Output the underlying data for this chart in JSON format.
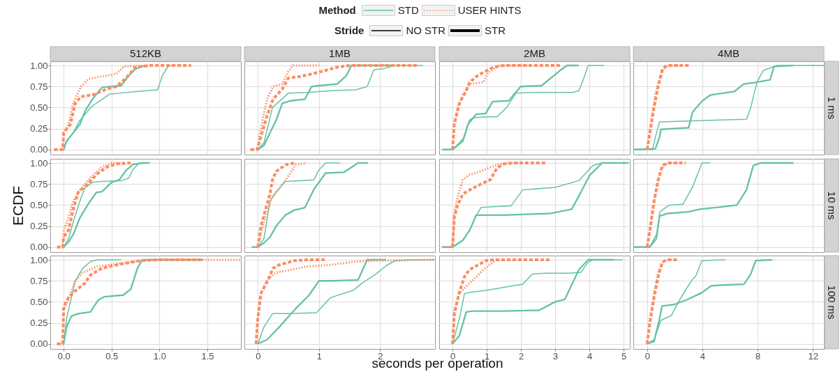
{
  "chart_data": [
    {
      "type": "other",
      "xlabel": "seconds per operation",
      "annotations": [
        "Method",
        "STD",
        "USER HINTS",
        "Stride",
        "NO STR",
        "STR"
      ]
    },
    {
      "type": "line",
      "title": "512KB",
      "tick_labels": "y",
      "grid": true,
      "xlim": [
        -0.14,
        1.85
      ],
      "xticks": [
        0,
        0.5,
        1,
        1.5
      ],
      "ylim": [
        -0.06,
        1.05
      ],
      "yticks": [
        {
          "value": 0,
          "label": "0.00"
        },
        0.25,
        {
          "value": 0.5,
          "label": "0.50"
        },
        0.75,
        {
          "value": 1,
          "label": "1.00"
        }
      ],
      "series": [
        {
          "color": "#66c2a5",
          "line_style": "solid",
          "x": [
            0,
            0.02,
            0.1,
            0.165,
            0.29,
            0.38,
            0.48,
            0.58,
            0.75,
            0.98,
            1.03,
            1.09,
            1.13
          ],
          "values": [
            0,
            0.08,
            0.2,
            0.34,
            0.51,
            0.58,
            0.66,
            0.67,
            0.69,
            0.71,
            0.88,
            0.99,
            1
          ]
        },
        {
          "color": "#66c2a5",
          "line_style": "solid",
          "x": [
            0,
            0.03,
            0.1,
            0.17,
            0.22,
            0.3,
            0.4,
            0.6,
            0.68,
            0.75,
            0.85
          ],
          "values": [
            0,
            0.1,
            0.2,
            0.3,
            0.45,
            0.6,
            0.74,
            0.76,
            0.88,
            0.96,
            1
          ]
        },
        {
          "color": "#fc8d62",
          "line_style": "dotted",
          "x": [
            -0.1,
            -0.01,
            0,
            0.05,
            0.1,
            0.18,
            0.26,
            0.4,
            0.55,
            0.63,
            0.9
          ],
          "values": [
            0,
            0,
            0.2,
            0.3,
            0.55,
            0.75,
            0.84,
            0.87,
            0.9,
            0.99,
            1
          ]
        },
        {
          "color": "#fc8d62",
          "line_style": "dashed",
          "x": [
            -0.1,
            -0.01,
            0,
            0.07,
            0.12,
            0.18,
            0.3,
            0.45,
            0.55,
            0.65,
            0.75,
            0.9,
            1.33
          ],
          "values": [
            0,
            0,
            0.2,
            0.3,
            0.55,
            0.63,
            0.65,
            0.72,
            0.75,
            0.85,
            0.98,
            1,
            1
          ]
        }
      ]
    },
    {
      "type": "line",
      "title": "1MB",
      "tick_labels": false,
      "grid": true,
      "xlim": [
        -0.22,
        2.9
      ],
      "xticks": [
        0,
        1,
        2
      ],
      "ylim": [
        -0.06,
        1.05
      ],
      "yticks": [
        0,
        0.25,
        0.5,
        0.75,
        1
      ],
      "series": [
        {
          "color": "#66c2a5",
          "line_style": "solid",
          "x": [
            0,
            0.1,
            0.24,
            0.5,
            0.8,
            1.2,
            1.6,
            1.79,
            1.9,
            2.05,
            2.25,
            2.7
          ],
          "values": [
            0,
            0.08,
            0.5,
            0.67,
            0.68,
            0.7,
            0.71,
            0.75,
            0.95,
            0.96,
            1,
            1
          ]
        },
        {
          "color": "#66c2a5",
          "line_style": "solid",
          "x": [
            0,
            0.1,
            0.2,
            0.3,
            0.4,
            0.54,
            0.77,
            0.88,
            1.0,
            1.3,
            1.45,
            1.53,
            1.7,
            2.2
          ],
          "values": [
            0,
            0.05,
            0.2,
            0.35,
            0.55,
            0.58,
            0.6,
            0.75,
            0.76,
            0.78,
            0.88,
            1,
            1,
            1
          ]
        },
        {
          "color": "#fc8d62",
          "line_style": "dotted",
          "x": [
            -0.12,
            -0.01,
            0.05,
            0.15,
            0.25,
            0.4,
            0.5,
            0.58,
            0.9,
            1.0
          ],
          "values": [
            0,
            0,
            0.25,
            0.6,
            0.75,
            0.78,
            0.93,
            1,
            1,
            1
          ]
        },
        {
          "color": "#fc8d62",
          "line_style": "dashed",
          "x": [
            -0.12,
            -0.01,
            0.05,
            0.15,
            0.25,
            0.4,
            0.5,
            0.7,
            1.0,
            1.3,
            1.5,
            2.6
          ],
          "values": [
            0,
            0,
            0.15,
            0.4,
            0.6,
            0.72,
            0.85,
            0.87,
            0.92,
            0.98,
            1,
            1
          ]
        }
      ]
    },
    {
      "type": "line",
      "title": "2MB",
      "tick_labels": false,
      "grid": true,
      "xlim": [
        -0.39,
        5.18
      ],
      "xticks": [
        0,
        1,
        2,
        3,
        4,
        5
      ],
      "ylim": [
        -0.06,
        1.05
      ],
      "yticks": [
        0,
        0.25,
        0.5,
        0.75,
        1
      ],
      "series": [
        {
          "color": "#66c2a5",
          "line_style": "solid",
          "x": [
            -0.3,
            0,
            0.2,
            0.35,
            0.49,
            0.6,
            1.0,
            1.3,
            1.58,
            1.85,
            2.4,
            3.5,
            3.69,
            3.82,
            3.96,
            4.43
          ],
          "values": [
            0,
            0,
            0.08,
            0.15,
            0.35,
            0.38,
            0.39,
            0.39,
            0.5,
            0.67,
            0.68,
            0.68,
            0.7,
            0.83,
            1,
            1
          ]
        },
        {
          "color": "#66c2a5",
          "line_style": "solid",
          "x": [
            -0.3,
            0,
            0.3,
            0.45,
            0.69,
            0.97,
            1.17,
            1.64,
            1.99,
            2.6,
            3.14,
            3.34,
            3.69
          ],
          "values": [
            0,
            0,
            0.1,
            0.3,
            0.42,
            0.43,
            0.57,
            0.58,
            0.75,
            0.76,
            0.94,
            1,
            1
          ]
        },
        {
          "color": "#fc8d62",
          "line_style": "dotted",
          "x": [
            0,
            0.05,
            0.15,
            0.3,
            0.5,
            0.9,
            1.03,
            1.37,
            1.6,
            2.2
          ],
          "values": [
            0,
            0.3,
            0.5,
            0.65,
            0.78,
            0.8,
            0.91,
            1,
            1,
            1
          ]
        },
        {
          "color": "#fc8d62",
          "line_style": "dashed",
          "x": [
            0,
            0.05,
            0.2,
            0.4,
            0.5,
            0.7,
            0.9,
            1.2,
            1.5,
            3.14
          ],
          "values": [
            0,
            0.3,
            0.55,
            0.7,
            0.8,
            0.87,
            0.92,
            0.98,
            1,
            1
          ]
        }
      ]
    },
    {
      "type": "line",
      "title": "4MB",
      "annotations": [
        "1 ms"
      ],
      "tick_labels": false,
      "grid": true,
      "xlim": [
        -1,
        12.8
      ],
      "xticks": [
        0,
        4,
        8,
        12
      ],
      "ylim": [
        -0.06,
        1.05
      ],
      "yticks": [
        0,
        0.25,
        0.5,
        0.75,
        1
      ],
      "series": [
        {
          "color": "#66c2a5",
          "line_style": "solid",
          "x": [
            -1,
            0.4,
            0.6,
            0.9,
            3,
            7.2,
            7.5,
            7.95,
            8.4,
            9.4,
            12.8
          ],
          "values": [
            0,
            0,
            0.15,
            0.33,
            0.34,
            0.36,
            0.5,
            0.8,
            0.94,
            1,
            1
          ]
        },
        {
          "color": "#66c2a5",
          "line_style": "solid",
          "x": [
            -1,
            0.6,
            0.9,
            1.0,
            3.0,
            3.3,
            4.0,
            4.6,
            6.3,
            7.0,
            7.9,
            8.9,
            9.2,
            10.6
          ],
          "values": [
            0,
            0.01,
            0.15,
            0.24,
            0.26,
            0.45,
            0.58,
            0.65,
            0.69,
            0.78,
            0.8,
            0.83,
            0.99,
            1
          ]
        },
        {
          "color": "#fc8d62",
          "line_style": "dotted",
          "x": [
            0,
            0.3,
            0.6,
            0.9,
            1.2,
            1.6,
            2.5
          ],
          "values": [
            0,
            0.35,
            0.65,
            0.85,
            0.97,
            1,
            1
          ]
        },
        {
          "color": "#fc8d62",
          "line_style": "dashed",
          "x": [
            0,
            0.2,
            0.5,
            0.8,
            1.1,
            1.4,
            3.1
          ],
          "values": [
            0,
            0.2,
            0.5,
            0.75,
            0.95,
            1,
            1
          ]
        }
      ]
    },
    {
      "type": "line",
      "ylabel": "ECDF",
      "tick_labels": "y",
      "grid": true,
      "xlim": [
        -0.14,
        1.85
      ],
      "xticks": [
        0,
        0.5,
        1,
        1.5
      ],
      "ylim": [
        -0.06,
        1.05
      ],
      "yticks": [
        {
          "value": 0,
          "label": "0.00"
        },
        0.25,
        {
          "value": 0.5,
          "label": "0.50"
        },
        0.75,
        {
          "value": 1,
          "label": "1.00"
        }
      ],
      "series": [
        {
          "color": "#66c2a5",
          "line_style": "solid",
          "x": [
            0,
            0.05,
            0.1,
            0.17,
            0.22,
            0.3,
            0.4,
            0.6,
            0.68,
            0.72,
            0.78,
            0.85
          ],
          "values": [
            0,
            0.1,
            0.3,
            0.55,
            0.7,
            0.77,
            0.78,
            0.79,
            0.82,
            0.92,
            0.99,
            1
          ]
        },
        {
          "color": "#66c2a5",
          "line_style": "solid",
          "x": [
            0,
            0.05,
            0.1,
            0.17,
            0.25,
            0.34,
            0.4,
            0.5,
            0.58,
            0.65,
            0.72,
            0.8,
            0.9
          ],
          "values": [
            0,
            0.06,
            0.15,
            0.35,
            0.5,
            0.65,
            0.66,
            0.77,
            0.8,
            0.91,
            0.98,
            1,
            1
          ]
        },
        {
          "color": "#fc8d62",
          "line_style": "dotted",
          "x": [
            -0.05,
            -0.01,
            0,
            0.05,
            0.1,
            0.17,
            0.3,
            0.4,
            0.5,
            0.6
          ],
          "values": [
            0,
            0,
            0.2,
            0.35,
            0.55,
            0.68,
            0.85,
            0.95,
            1,
            1
          ]
        },
        {
          "color": "#fc8d62",
          "line_style": "dashed",
          "x": [
            -0.07,
            -0.01,
            0,
            0.05,
            0.1,
            0.15,
            0.25,
            0.35,
            0.45,
            0.55,
            0.7
          ],
          "values": [
            0,
            0,
            0.12,
            0.2,
            0.45,
            0.65,
            0.75,
            0.87,
            0.95,
            0.99,
            1
          ]
        }
      ]
    },
    {
      "type": "line",
      "tick_labels": false,
      "grid": true,
      "xlim": [
        -0.22,
        2.9
      ],
      "xticks": [
        0,
        1,
        2
      ],
      "ylim": [
        -0.06,
        1.05
      ],
      "yticks": [
        0,
        0.25,
        0.5,
        0.75,
        1
      ],
      "series": [
        {
          "color": "#66c2a5",
          "line_style": "solid",
          "x": [
            0,
            0.1,
            0.2,
            0.3,
            0.45,
            0.7,
            0.92,
            1.0,
            1.11,
            1.34
          ],
          "values": [
            0,
            0.1,
            0.55,
            0.65,
            0.78,
            0.79,
            0.8,
            0.92,
            1,
            1
          ]
        },
        {
          "color": "#66c2a5",
          "line_style": "solid",
          "x": [
            -0.1,
            0,
            0.1,
            0.2,
            0.3,
            0.45,
            0.6,
            0.77,
            0.92,
            1.11,
            1.41,
            1.64,
            1.8
          ],
          "values": [
            0,
            0,
            0.05,
            0.12,
            0.25,
            0.38,
            0.44,
            0.47,
            0.69,
            0.88,
            0.89,
            1,
            1
          ]
        },
        {
          "color": "#fc8d62",
          "line_style": "dotted",
          "x": [
            0,
            0.1,
            0.24,
            0.35,
            0.46,
            0.62,
            0.8
          ],
          "values": [
            0,
            0.3,
            0.61,
            0.7,
            0.8,
            0.98,
            1
          ]
        },
        {
          "color": "#fc8d62",
          "line_style": "dashed",
          "x": [
            0,
            0.05,
            0.2,
            0.24,
            0.3,
            0.46,
            0.6
          ],
          "values": [
            0,
            0.25,
            0.64,
            0.8,
            0.9,
            0.98,
            1
          ]
        }
      ]
    },
    {
      "type": "line",
      "tick_labels": false,
      "grid": true,
      "xlim": [
        -0.39,
        5.18
      ],
      "xticks": [
        0,
        1,
        2,
        3,
        4,
        5
      ],
      "ylim": [
        -0.06,
        1.05
      ],
      "yticks": [
        0,
        0.25,
        0.5,
        0.75,
        1
      ],
      "series": [
        {
          "color": "#66c2a5",
          "line_style": "solid",
          "x": [
            -0.3,
            0,
            0.3,
            0.5,
            0.7,
            0.83,
            1.2,
            1.71,
            2.05,
            3.0,
            3.69,
            4.1,
            4.35,
            4.97
          ],
          "values": [
            0,
            0,
            0.08,
            0.2,
            0.38,
            0.47,
            0.48,
            0.49,
            0.68,
            0.71,
            0.79,
            0.97,
            1,
            1
          ]
        },
        {
          "color": "#66c2a5",
          "line_style": "solid",
          "x": [
            -0.3,
            0,
            0.3,
            0.5,
            0.69,
            1.5,
            2.87,
            3.48,
            3.76,
            4.0,
            4.37,
            5.15
          ],
          "values": [
            0,
            0,
            0.08,
            0.2,
            0.38,
            0.38,
            0.4,
            0.45,
            0.66,
            0.85,
            1,
            1
          ]
        },
        {
          "color": "#fc8d62",
          "line_style": "dotted",
          "x": [
            -0.3,
            0,
            0.05,
            0.15,
            0.3,
            0.5,
            0.69,
            1.3,
            1.6,
            2.0
          ],
          "values": [
            0,
            0,
            0.4,
            0.6,
            0.8,
            0.86,
            0.88,
            0.98,
            1,
            1
          ]
        },
        {
          "color": "#fc8d62",
          "line_style": "dashed",
          "x": [
            0,
            0.05,
            0.15,
            0.3,
            0.5,
            0.83,
            1.1,
            1.3,
            1.5,
            1.8,
            2.73
          ],
          "values": [
            0,
            0.35,
            0.5,
            0.63,
            0.68,
            0.75,
            0.8,
            0.94,
            0.99,
            1,
            1
          ]
        }
      ]
    },
    {
      "type": "line",
      "annotations": [
        "10 ms"
      ],
      "tick_labels": false,
      "grid": true,
      "xlim": [
        -1,
        12.8
      ],
      "xticks": [
        0,
        4,
        8,
        12
      ],
      "ylim": [
        -0.06,
        1.05
      ],
      "yticks": [
        0,
        0.25,
        0.5,
        0.75,
        1
      ],
      "series": [
        {
          "color": "#66c2a5",
          "line_style": "solid",
          "x": [
            -1,
            0.2,
            0.7,
            0.92,
            1.6,
            2.6,
            2.9,
            3.3,
            3.97,
            4.56
          ],
          "values": [
            0,
            0,
            0.1,
            0.42,
            0.5,
            0.51,
            0.6,
            0.72,
            1,
            1
          ]
        },
        {
          "color": "#66c2a5",
          "line_style": "solid",
          "x": [
            -1,
            0.2,
            0.7,
            0.9,
            1.5,
            3.0,
            3.8,
            5.5,
            6.5,
            7.19,
            7.69,
            8.2,
            10.6
          ],
          "values": [
            0,
            0,
            0.15,
            0.37,
            0.4,
            0.42,
            0.45,
            0.48,
            0.5,
            0.68,
            0.97,
            1,
            1
          ]
        },
        {
          "color": "#fc8d62",
          "line_style": "dotted",
          "x": [
            0,
            0.3,
            0.6,
            0.9,
            1.2,
            1.6,
            2.2
          ],
          "values": [
            0,
            0.3,
            0.6,
            0.85,
            0.98,
            1,
            1
          ]
        },
        {
          "color": "#fc8d62",
          "line_style": "dashed",
          "x": [
            0,
            0.2,
            0.5,
            0.8,
            1.1,
            1.5,
            2.8
          ],
          "values": [
            0,
            0.2,
            0.55,
            0.8,
            0.97,
            1,
            1
          ]
        }
      ]
    },
    {
      "type": "line",
      "grid": true,
      "xlim": [
        -0.14,
        1.85
      ],
      "xticks": [
        {
          "value": 0,
          "label": "0.0"
        },
        0.5,
        {
          "value": 1,
          "label": "1.0"
        },
        1.5
      ],
      "ylim": [
        -0.06,
        1.05
      ],
      "yticks": [
        {
          "value": 0,
          "label": "0.00"
        },
        0.25,
        {
          "value": 0.5,
          "label": "0.50"
        },
        0.75,
        {
          "value": 1,
          "label": "1.00"
        }
      ],
      "series": [
        {
          "color": "#66c2a5",
          "line_style": "solid",
          "x": [
            0,
            0.03,
            0.08,
            0.12,
            0.2,
            0.28,
            0.35,
            0.6
          ],
          "values": [
            0,
            0.3,
            0.55,
            0.75,
            0.9,
            0.98,
            1,
            1
          ]
        },
        {
          "color": "#66c2a5",
          "line_style": "solid",
          "x": [
            0,
            0.03,
            0.08,
            0.15,
            0.28,
            0.36,
            0.42,
            0.62,
            0.7,
            0.77,
            0.82,
            1.45
          ],
          "values": [
            0,
            0.2,
            0.33,
            0.36,
            0.38,
            0.52,
            0.56,
            0.58,
            0.65,
            0.9,
            1,
            1
          ]
        },
        {
          "color": "#fc8d62",
          "line_style": "dotted",
          "x": [
            -0.07,
            -0.01,
            0,
            0.05,
            0.12,
            0.2,
            0.35,
            0.6,
            0.8,
            1.0,
            1.85
          ],
          "values": [
            0,
            0,
            0.4,
            0.53,
            0.75,
            0.85,
            0.92,
            0.96,
            0.99,
            1,
            1
          ]
        },
        {
          "color": "#fc8d62",
          "line_style": "dashed",
          "x": [
            -0.07,
            -0.01,
            0,
            0.05,
            0.12,
            0.22,
            0.28,
            0.4,
            0.6,
            0.8,
            1.0,
            1.45
          ],
          "values": [
            0,
            0,
            0.45,
            0.55,
            0.63,
            0.72,
            0.82,
            0.9,
            0.95,
            0.99,
            1,
            1
          ]
        }
      ]
    },
    {
      "type": "line",
      "tick_labels": "x",
      "grid": true,
      "xlim": [
        -0.22,
        2.9
      ],
      "xticks": [
        0,
        1,
        2
      ],
      "ylim": [
        -0.06,
        1.05
      ],
      "yticks": [
        0,
        0.25,
        0.5,
        0.75,
        1
      ],
      "series": [
        {
          "color": "#66c2a5",
          "line_style": "solid",
          "x": [
            0,
            0.1,
            0.24,
            0.5,
            0.96,
            1.19,
            1.57,
            1.7,
            1.95,
            2.1,
            2.25,
            2.5,
            2.9
          ],
          "values": [
            0,
            0.2,
            0.36,
            0.36,
            0.37,
            0.55,
            0.64,
            0.72,
            0.84,
            0.93,
            0.99,
            1,
            1
          ]
        },
        {
          "color": "#66c2a5",
          "line_style": "solid",
          "x": [
            0,
            0.15,
            0.35,
            0.62,
            0.84,
            1.0,
            1.2,
            1.64,
            1.79,
            2.1
          ],
          "values": [
            0,
            0.05,
            0.2,
            0.42,
            0.58,
            0.75,
            0.75,
            0.76,
            1,
            1
          ]
        },
        {
          "color": "#fc8d62",
          "line_style": "dotted",
          "x": [
            -0.03,
            0,
            0.05,
            0.15,
            0.3,
            0.46,
            0.8,
            1.19,
            1.6,
            2.0,
            2.9
          ],
          "values": [
            0,
            0.3,
            0.6,
            0.76,
            0.85,
            0.87,
            0.92,
            0.94,
            0.98,
            0.99,
            1
          ]
        },
        {
          "color": "#fc8d62",
          "line_style": "dashed",
          "x": [
            -0.03,
            0,
            0.05,
            0.16,
            0.25,
            0.35,
            0.6,
            0.8,
            1.1
          ],
          "values": [
            0,
            0.3,
            0.6,
            0.75,
            0.9,
            0.94,
            0.99,
            1,
            1
          ]
        }
      ]
    },
    {
      "type": "line",
      "tick_labels": "x",
      "grid": true,
      "xlim": [
        -0.39,
        5.18
      ],
      "xticks": [
        0,
        1,
        2,
        3,
        4,
        5
      ],
      "ylim": [
        -0.06,
        1.05
      ],
      "yticks": [
        0,
        0.25,
        0.5,
        0.75,
        1
      ],
      "series": [
        {
          "color": "#66c2a5",
          "line_style": "solid",
          "x": [
            0,
            0.2,
            0.35,
            0.49,
            1.03,
            2.05,
            2.33,
            2.7,
            3.4,
            3.75,
            3.96,
            4.1,
            4.97
          ],
          "values": [
            0,
            0.3,
            0.6,
            0.61,
            0.64,
            0.71,
            0.83,
            0.84,
            0.84,
            0.85,
            0.97,
            1,
            1
          ]
        },
        {
          "color": "#66c2a5",
          "line_style": "solid",
          "x": [
            0,
            0.2,
            0.4,
            0.6,
            1.5,
            2.53,
            3.0,
            3.28,
            3.69,
            3.96,
            4.7
          ],
          "values": [
            0,
            0.1,
            0.38,
            0.39,
            0.39,
            0.4,
            0.5,
            0.53,
            0.88,
            1,
            1
          ]
        },
        {
          "color": "#fc8d62",
          "line_style": "dotted",
          "x": [
            0,
            0.05,
            0.2,
            0.49,
            0.9,
            1.24,
            1.5,
            2.1
          ],
          "values": [
            0,
            0.4,
            0.6,
            0.72,
            0.88,
            0.99,
            1,
            1
          ]
        },
        {
          "color": "#fc8d62",
          "line_style": "dashed",
          "x": [
            0,
            0.05,
            0.2,
            0.35,
            0.49,
            0.97,
            1.2,
            2.87
          ],
          "values": [
            0,
            0.35,
            0.62,
            0.8,
            0.88,
            0.99,
            1,
            1
          ]
        }
      ]
    },
    {
      "type": "line",
      "annotations": [
        "100 ms"
      ],
      "tick_labels": "x",
      "grid": true,
      "xlim": [
        -1,
        12.8
      ],
      "xticks": [
        0,
        4,
        8,
        12
      ],
      "ylim": [
        -0.06,
        1.05
      ],
      "yticks": [
        0,
        0.25,
        0.5,
        0.75,
        1
      ],
      "series": [
        {
          "color": "#66c2a5",
          "line_style": "solid",
          "x": [
            0,
            0.5,
            1.0,
            1.76,
            2.27,
            2.78,
            3.29,
            3.5,
            3.97,
            5.66
          ],
          "values": [
            0,
            0.05,
            0.28,
            0.34,
            0.5,
            0.64,
            0.77,
            0.8,
            0.99,
            1
          ]
        },
        {
          "color": "#66c2a5",
          "line_style": "solid",
          "x": [
            0,
            0.5,
            0.9,
            1.08,
            2.0,
            2.95,
            3.97,
            4.64,
            5.5,
            7.0,
            7.5,
            7.86,
            9.05
          ],
          "values": [
            0,
            0.03,
            0.3,
            0.45,
            0.47,
            0.53,
            0.61,
            0.69,
            0.7,
            0.71,
            0.83,
            0.99,
            1
          ]
        },
        {
          "color": "#fc8d62",
          "line_style": "dotted",
          "x": [
            0,
            0.2,
            0.5,
            0.8,
            1.1,
            1.5,
            1.9
          ],
          "values": [
            0,
            0.3,
            0.6,
            0.85,
            0.97,
            1,
            1
          ]
        },
        {
          "color": "#fc8d62",
          "line_style": "dashed",
          "x": [
            0,
            0.2,
            0.5,
            0.8,
            1.1,
            1.4,
            2.27
          ],
          "values": [
            0,
            0.25,
            0.55,
            0.8,
            0.97,
            1,
            1
          ]
        }
      ]
    }
  ]
}
